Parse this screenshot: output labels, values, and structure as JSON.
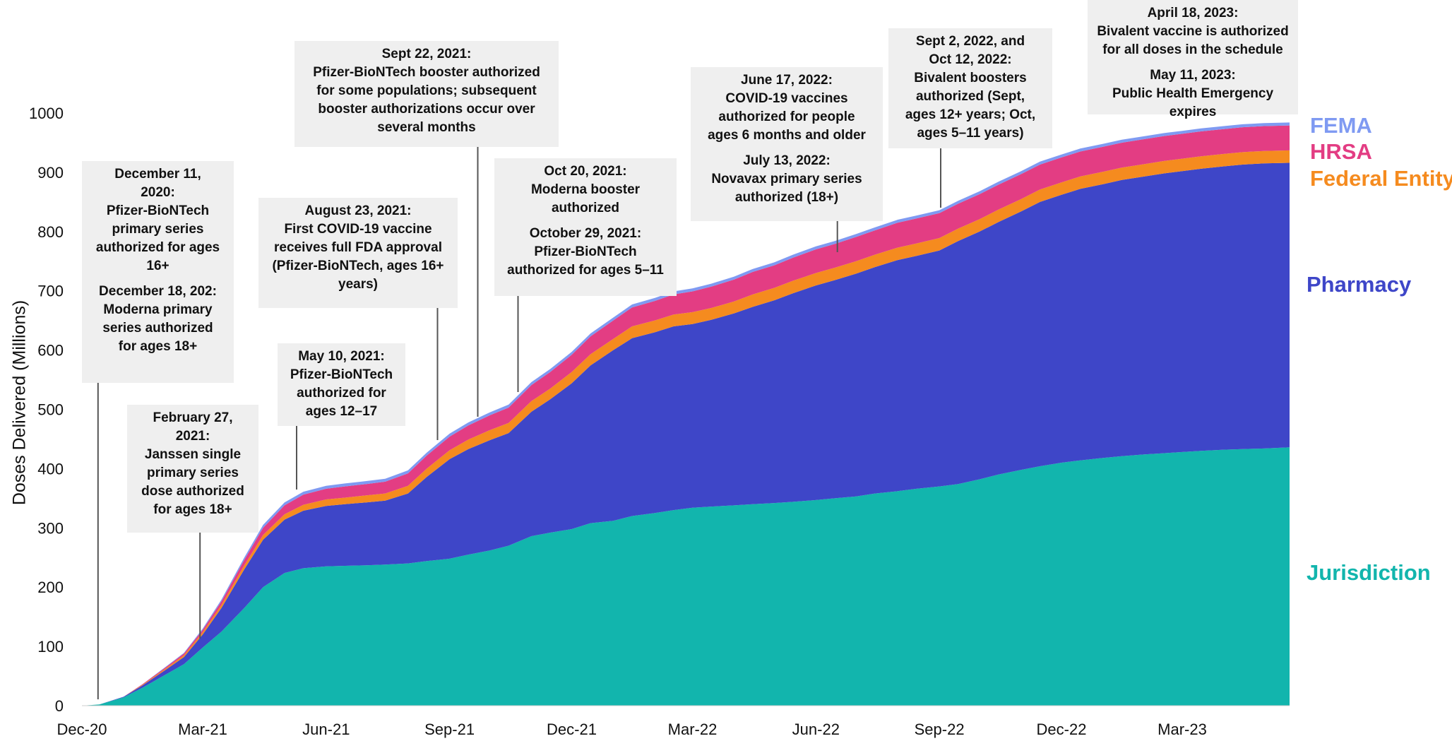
{
  "chart_data": {
    "type": "area",
    "stacked": true,
    "xlabel": "",
    "ylabel": "Doses Delivered (Millions)",
    "ylim": [
      0,
      1000
    ],
    "yticks": [
      0,
      100,
      200,
      300,
      400,
      500,
      600,
      700,
      800,
      900,
      1000
    ],
    "xlim": [
      "2020-12-01",
      "2023-05-20"
    ],
    "xticks": [
      {
        "date": "2020-12-01",
        "label": "Dec-20"
      },
      {
        "date": "2021-03-01",
        "label": "Mar-21"
      },
      {
        "date": "2021-06-01",
        "label": "Jun-21"
      },
      {
        "date": "2021-09-01",
        "label": "Sep-21"
      },
      {
        "date": "2021-12-01",
        "label": "Dec-21"
      },
      {
        "date": "2022-03-01",
        "label": "Mar-22"
      },
      {
        "date": "2022-06-01",
        "label": "Jun-22"
      },
      {
        "date": "2022-09-01",
        "label": "Sep-22"
      },
      {
        "date": "2022-12-01",
        "label": "Dec-22"
      },
      {
        "date": "2023-03-01",
        "label": "Mar-23"
      }
    ],
    "grid": false,
    "legend": "right, inline labels",
    "x": [
      "2020-12-01",
      "2020-12-14",
      "2021-01-01",
      "2021-01-15",
      "2021-02-01",
      "2021-02-15",
      "2021-03-01",
      "2021-03-15",
      "2021-04-01",
      "2021-04-15",
      "2021-05-01",
      "2021-05-15",
      "2021-06-01",
      "2021-06-15",
      "2021-07-01",
      "2021-07-15",
      "2021-08-01",
      "2021-08-15",
      "2021-09-01",
      "2021-09-15",
      "2021-10-01",
      "2021-10-15",
      "2021-11-01",
      "2021-11-15",
      "2021-12-01",
      "2021-12-15",
      "2022-01-01",
      "2022-01-15",
      "2022-02-01",
      "2022-02-15",
      "2022-03-01",
      "2022-03-15",
      "2022-04-01",
      "2022-04-15",
      "2022-05-01",
      "2022-05-15",
      "2022-06-01",
      "2022-06-15",
      "2022-07-01",
      "2022-07-15",
      "2022-08-01",
      "2022-08-15",
      "2022-09-01",
      "2022-09-15",
      "2022-10-01",
      "2022-10-15",
      "2022-11-01",
      "2022-11-15",
      "2022-12-01",
      "2022-12-15",
      "2023-01-01",
      "2023-01-15",
      "2023-02-01",
      "2023-02-15",
      "2023-03-01",
      "2023-03-15",
      "2023-04-01",
      "2023-04-15",
      "2023-05-01",
      "2023-05-20"
    ],
    "series": [
      {
        "name": "Jurisdiction",
        "color": "#12b5ad",
        "values": [
          0,
          2,
          14,
          30,
          52,
          70,
          98,
          125,
          165,
          200,
          224,
          232,
          235,
          236,
          237,
          238,
          240,
          244,
          248,
          255,
          262,
          270,
          286,
          292,
          298,
          308,
          312,
          320,
          325,
          330,
          334,
          336,
          338,
          340,
          342,
          344,
          347,
          350,
          353,
          358,
          362,
          366,
          370,
          374,
          382,
          390,
          398,
          404,
          410,
          414,
          418,
          421,
          424,
          426,
          428,
          430,
          432,
          433,
          434,
          436
        ]
      },
      {
        "name": "Pharmacy",
        "color": "#3e46c8",
        "values": [
          0,
          0,
          1,
          4,
          8,
          12,
          22,
          40,
          65,
          80,
          90,
          97,
          102,
          104,
          106,
          108,
          118,
          142,
          168,
          178,
          186,
          190,
          210,
          225,
          246,
          266,
          288,
          300,
          305,
          310,
          310,
          315,
          324,
          333,
          342,
          352,
          362,
          368,
          376,
          382,
          390,
          393,
          398,
          410,
          418,
          426,
          436,
          446,
          452,
          458,
          462,
          466,
          469,
          472,
          474,
          476,
          478,
          480,
          481,
          480
        ]
      },
      {
        "name": "Federal Entity",
        "color": "#f58b1f",
        "values": [
          0,
          0,
          0,
          1,
          2,
          3,
          4,
          5,
          7,
          8,
          9,
          10,
          11,
          11,
          12,
          12,
          13,
          14,
          15,
          16,
          17,
          17,
          18,
          18,
          19,
          19,
          19,
          20,
          20,
          20,
          20,
          20,
          20,
          21,
          21,
          21,
          21,
          21,
          21,
          21,
          21,
          21,
          21,
          21,
          21,
          21,
          21,
          21,
          21,
          21,
          21,
          21,
          21,
          21,
          21,
          21,
          21,
          21,
          21,
          21
        ]
      },
      {
        "name": "HRSA",
        "color": "#e33d83",
        "values": [
          0,
          0,
          0,
          1,
          2,
          3,
          4,
          6,
          9,
          12,
          15,
          17,
          18,
          19,
          19,
          20,
          21,
          22,
          23,
          24,
          25,
          26,
          27,
          28,
          29,
          30,
          31,
          32,
          33,
          34,
          35,
          36,
          37,
          38,
          38,
          39,
          40,
          40,
          41,
          41,
          42,
          42,
          42,
          42,
          42,
          42,
          42,
          42,
          42,
          42,
          42,
          42,
          42,
          42,
          42,
          42,
          42,
          42,
          42,
          42
        ]
      },
      {
        "name": "FEMA",
        "color": "#7f9af2",
        "values": [
          0,
          0,
          0,
          0,
          1,
          1,
          2,
          3,
          4,
          5,
          5,
          5,
          5,
          5,
          5,
          5,
          5,
          5,
          5,
          5,
          5,
          5,
          5,
          5,
          5,
          5,
          5,
          5,
          5,
          5,
          5,
          5,
          5,
          5,
          5,
          5,
          5,
          5,
          5,
          5,
          5,
          5,
          5,
          5,
          5,
          5,
          5,
          5,
          5,
          5,
          5,
          5,
          5,
          5,
          5,
          5,
          5,
          5,
          5,
          5
        ]
      }
    ],
    "series_label_colors": {
      "FEMA": "#7f9af2",
      "HRSA": "#e33d83",
      "Federal Entity": "#f58b1f",
      "Pharmacy": "#3e46c8",
      "Jurisdiction": "#12b5ad"
    },
    "annotations": [
      {
        "id": "dec-2020",
        "date": "2020-12-13",
        "lines": [
          "December 11,",
          "2020:",
          "Pfizer-BioNTech",
          "primary series",
          "authorized for ages",
          "16+",
          "",
          "December 18, 202:",
          "Moderna primary",
          "series authorized",
          "for ages 18+"
        ]
      },
      {
        "id": "feb-2021",
        "date": "2021-02-27",
        "lines": [
          "February 27,",
          "2021:",
          "Janssen single",
          "primary series",
          "dose authorized",
          "for ages 18+"
        ]
      },
      {
        "id": "may-2021",
        "date": "2021-05-10",
        "lines": [
          "May 10, 2021:",
          "Pfizer-BioNTech",
          "authorized  for",
          "ages 12–17"
        ]
      },
      {
        "id": "aug-2021",
        "date": "2021-08-23",
        "lines": [
          "August 23, 2021:",
          "First COVID-19 vaccine",
          "receives full FDA approval",
          "(Pfizer-BioNTech, ages 16+",
          "years)"
        ]
      },
      {
        "id": "sep-2021",
        "date": "2021-09-22",
        "lines": [
          "Sept 22, 2021:",
          "Pfizer-BioNTech booster authorized",
          "for some populations; subsequent",
          "booster authorizations occur over",
          "several months"
        ]
      },
      {
        "id": "oct-2021",
        "date": "2021-10-22",
        "lines": [
          "Oct 20, 2021:",
          "Moderna booster",
          "authorized",
          "",
          "October 29, 2021:",
          "Pfizer-BioNTech",
          "authorized for ages 5–11"
        ]
      },
      {
        "id": "jun-2022",
        "date": "2022-06-17",
        "lines": [
          "June 17, 2022:",
          "COVID-19 vaccines",
          "authorized for people",
          "ages 6 months and older",
          "",
          "July 13, 2022:",
          "Novavax primary series",
          "authorized (18+)"
        ]
      },
      {
        "id": "sep-2022",
        "date": "2022-09-02",
        "lines": [
          "Sept 2, 2022, and",
          "Oct 12, 2022:",
          "Bivalent boosters",
          "authorized (Sept,",
          "ages 12+ years; Oct,",
          "ages 5–11 years)"
        ]
      },
      {
        "id": "apr-2023",
        "date": "",
        "lines": [
          "April 18, 2023:",
          "Bivalent vaccine is authorized",
          "for all doses in the schedule",
          "",
          "May 11, 2023:",
          "Public Health Emergency expires"
        ]
      }
    ]
  }
}
